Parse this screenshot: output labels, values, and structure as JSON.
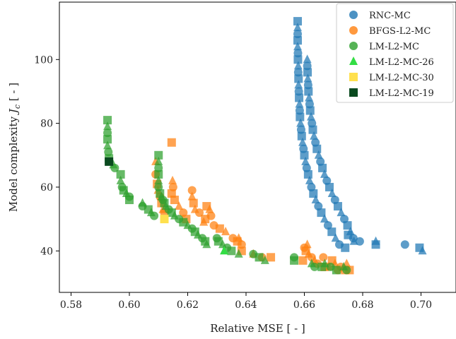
{
  "chart_data": {
    "type": "scatter",
    "title": "",
    "xlabel": "Relative MSE [ - ]",
    "ylabel": "Model complexity J_c [ - ]",
    "ylabel_parts": {
      "before": "Model complexity ",
      "symbol": "J",
      "subscript": "c",
      "after": " [ - ]"
    },
    "xlim": [
      0.576,
      0.712
    ],
    "ylim": [
      27,
      118
    ],
    "x_ticks": [
      0.58,
      0.6,
      0.62,
      0.64,
      0.66,
      0.68,
      0.7
    ],
    "y_ticks": [
      40,
      60,
      80,
      100
    ],
    "x_tick_labels": [
      "0.58",
      "0.60",
      "0.62",
      "0.64",
      "0.66",
      "0.68",
      "0.70"
    ],
    "y_tick_labels": [
      "40",
      "60",
      "80",
      "100"
    ],
    "grid": false,
    "legend_position": "top-right",
    "series": [
      {
        "name": "RNC-MC",
        "color": "#1f77b4",
        "marker": "mixed",
        "points": [
          [
            0.6577,
            112
          ],
          [
            0.6577,
            110
          ],
          [
            0.6577,
            108
          ],
          [
            0.6577,
            106
          ],
          [
            0.6577,
            104
          ],
          [
            0.6578,
            102
          ],
          [
            0.6578,
            100
          ],
          [
            0.6579,
            98
          ],
          [
            0.6579,
            96
          ],
          [
            0.658,
            94
          ],
          [
            0.658,
            92
          ],
          [
            0.6581,
            90
          ],
          [
            0.6582,
            88
          ],
          [
            0.6583,
            86
          ],
          [
            0.6584,
            84
          ],
          [
            0.6585,
            82
          ],
          [
            0.6587,
            80
          ],
          [
            0.6589,
            78
          ],
          [
            0.6591,
            76
          ],
          [
            0.6594,
            74
          ],
          [
            0.6597,
            72
          ],
          [
            0.66,
            70
          ],
          [
            0.6604,
            68
          ],
          [
            0.6608,
            66
          ],
          [
            0.6613,
            64
          ],
          [
            0.6618,
            62
          ],
          [
            0.6624,
            60
          ],
          [
            0.6631,
            58
          ],
          [
            0.6639,
            56
          ],
          [
            0.6648,
            54
          ],
          [
            0.6658,
            52
          ],
          [
            0.6669,
            50
          ],
          [
            0.6681,
            48
          ],
          [
            0.6694,
            46
          ],
          [
            0.6707,
            44
          ],
          [
            0.672,
            42
          ],
          [
            0.674,
            41
          ],
          [
            0.661,
            100
          ],
          [
            0.661,
            98
          ],
          [
            0.6611,
            96
          ],
          [
            0.6612,
            94
          ],
          [
            0.6613,
            92
          ],
          [
            0.6614,
            90
          ],
          [
            0.6616,
            88
          ],
          [
            0.6618,
            86
          ],
          [
            0.662,
            84
          ],
          [
            0.6623,
            82
          ],
          [
            0.6626,
            80
          ],
          [
            0.6629,
            78
          ],
          [
            0.6633,
            76
          ],
          [
            0.6638,
            74
          ],
          [
            0.6643,
            72
          ],
          [
            0.6649,
            70
          ],
          [
            0.6655,
            68
          ],
          [
            0.6662,
            66
          ],
          [
            0.6669,
            64
          ],
          [
            0.6677,
            62
          ],
          [
            0.6686,
            60
          ],
          [
            0.6695,
            58
          ],
          [
            0.6705,
            56
          ],
          [
            0.6715,
            54
          ],
          [
            0.6726,
            52
          ],
          [
            0.6737,
            50
          ],
          [
            0.6748,
            48
          ],
          [
            0.6758,
            46
          ],
          [
            0.6768,
            44
          ],
          [
            0.675,
            45
          ],
          [
            0.677,
            43
          ],
          [
            0.679,
            43
          ],
          [
            0.6845,
            42
          ],
          [
            0.6845,
            43
          ],
          [
            0.6945,
            42
          ],
          [
            0.6995,
            41
          ],
          [
            0.7005,
            40
          ]
        ]
      },
      {
        "name": "BFGS-L2-MC",
        "color": "#ff7f0e",
        "marker": "mixed",
        "points": [
          [
            0.6145,
            74
          ],
          [
            0.609,
            68
          ],
          [
            0.609,
            64
          ],
          [
            0.6095,
            61
          ],
          [
            0.6098,
            59
          ],
          [
            0.6105,
            57
          ],
          [
            0.611,
            55
          ],
          [
            0.6115,
            53
          ],
          [
            0.612,
            52
          ],
          [
            0.6145,
            58
          ],
          [
            0.6148,
            62
          ],
          [
            0.615,
            60
          ],
          [
            0.6155,
            56
          ],
          [
            0.617,
            54
          ],
          [
            0.6185,
            52
          ],
          [
            0.6195,
            50
          ],
          [
            0.6215,
            57
          ],
          [
            0.6215,
            59
          ],
          [
            0.622,
            55
          ],
          [
            0.6225,
            53
          ],
          [
            0.624,
            52
          ],
          [
            0.6265,
            54
          ],
          [
            0.6275,
            53
          ],
          [
            0.628,
            51
          ],
          [
            0.626,
            50
          ],
          [
            0.6255,
            49
          ],
          [
            0.629,
            48
          ],
          [
            0.631,
            47
          ],
          [
            0.633,
            46
          ],
          [
            0.6355,
            44
          ],
          [
            0.637,
            43
          ],
          [
            0.6375,
            44
          ],
          [
            0.6385,
            42
          ],
          [
            0.6385,
            40
          ],
          [
            0.6425,
            39
          ],
          [
            0.6455,
            38
          ],
          [
            0.6485,
            38
          ],
          [
            0.661,
            42
          ],
          [
            0.66,
            41
          ],
          [
            0.6605,
            40
          ],
          [
            0.6615,
            39
          ],
          [
            0.6625,
            38
          ],
          [
            0.6595,
            37
          ],
          [
            0.6635,
            37
          ],
          [
            0.6665,
            38
          ],
          [
            0.6695,
            37
          ],
          [
            0.6705,
            36
          ],
          [
            0.6725,
            35
          ],
          [
            0.674,
            34
          ],
          [
            0.6745,
            36
          ],
          [
            0.6645,
            36
          ],
          [
            0.667,
            35
          ],
          [
            0.6685,
            35
          ],
          [
            0.6715,
            34
          ],
          [
            0.6755,
            34
          ]
        ]
      },
      {
        "name": "LM-L2-MC",
        "color": "#2ca02c",
        "marker": "mixed",
        "points": [
          [
            0.5925,
            81
          ],
          [
            0.5925,
            79
          ],
          [
            0.5925,
            77
          ],
          [
            0.5925,
            75
          ],
          [
            0.5925,
            73
          ],
          [
            0.5928,
            71
          ],
          [
            0.593,
            69
          ],
          [
            0.5945,
            67
          ],
          [
            0.595,
            66
          ],
          [
            0.597,
            64
          ],
          [
            0.597,
            62
          ],
          [
            0.5975,
            60
          ],
          [
            0.598,
            59
          ],
          [
            0.599,
            58
          ],
          [
            0.6,
            57
          ],
          [
            0.6,
            56
          ],
          [
            0.6045,
            55
          ],
          [
            0.6045,
            54
          ],
          [
            0.6065,
            53
          ],
          [
            0.6075,
            52
          ],
          [
            0.6085,
            51
          ],
          [
            0.61,
            70
          ],
          [
            0.61,
            68
          ],
          [
            0.61,
            66
          ],
          [
            0.61,
            64
          ],
          [
            0.61,
            62
          ],
          [
            0.61,
            60
          ],
          [
            0.6105,
            58
          ],
          [
            0.611,
            57
          ],
          [
            0.6115,
            56
          ],
          [
            0.612,
            55
          ],
          [
            0.6125,
            54
          ],
          [
            0.6135,
            53
          ],
          [
            0.6145,
            52
          ],
          [
            0.6155,
            51
          ],
          [
            0.617,
            50
          ],
          [
            0.6185,
            49
          ],
          [
            0.62,
            48
          ],
          [
            0.6215,
            47
          ],
          [
            0.6225,
            46
          ],
          [
            0.6235,
            45
          ],
          [
            0.625,
            44
          ],
          [
            0.626,
            43
          ],
          [
            0.6265,
            42
          ],
          [
            0.63,
            44
          ],
          [
            0.6305,
            43
          ],
          [
            0.632,
            42
          ],
          [
            0.6335,
            41
          ],
          [
            0.635,
            40
          ],
          [
            0.6375,
            39
          ],
          [
            0.6425,
            39
          ],
          [
            0.6445,
            38
          ],
          [
            0.6465,
            37
          ],
          [
            0.6565,
            38
          ],
          [
            0.6565,
            37
          ],
          [
            0.6625,
            36
          ],
          [
            0.6635,
            35
          ],
          [
            0.666,
            35
          ],
          [
            0.667,
            36
          ],
          [
            0.669,
            35
          ],
          [
            0.671,
            34
          ],
          [
            0.6735,
            35
          ],
          [
            0.6745,
            34
          ]
        ]
      },
      {
        "name": "LM-L2-MC-26",
        "color": "#33dd44",
        "marker": "triangle",
        "points": [
          [
            0.6325,
            40
          ]
        ]
      },
      {
        "name": "LM-L2-MC-30",
        "color": "#ffe04d",
        "marker": "square",
        "points": [
          [
            0.612,
            50
          ]
        ]
      },
      {
        "name": "LM-L2-MC-19",
        "color": "#0a4a1f",
        "marker": "square",
        "points": [
          [
            0.593,
            68
          ]
        ]
      }
    ]
  }
}
